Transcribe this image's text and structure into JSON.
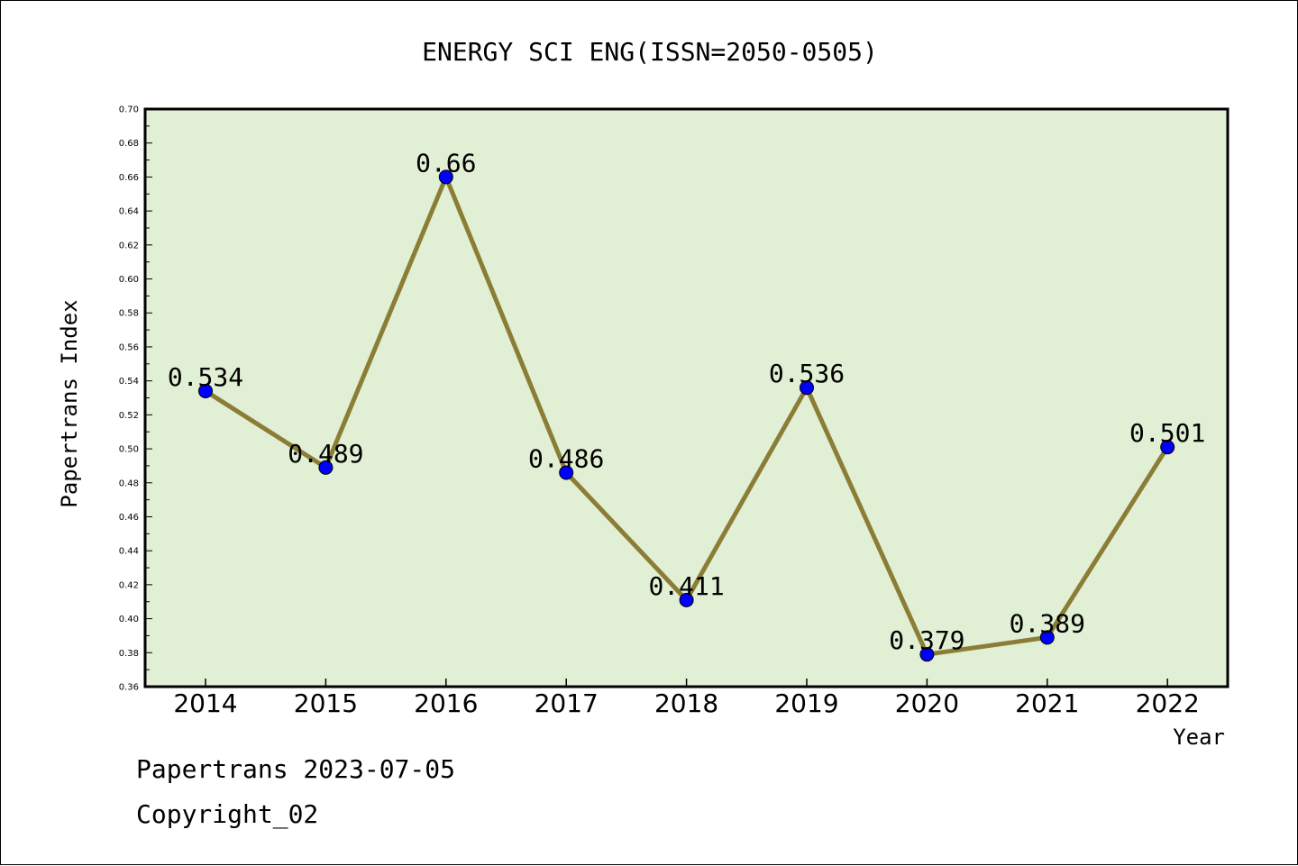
{
  "chart_data": {
    "type": "line",
    "title": "ENERGY SCI ENG(ISSN=2050-0505)",
    "xlabel": "Year",
    "ylabel": "Papertrans Index",
    "categories": [
      "2014",
      "2015",
      "2016",
      "2017",
      "2018",
      "2019",
      "2020",
      "2021",
      "2022"
    ],
    "values": [
      0.534,
      0.489,
      0.66,
      0.486,
      0.411,
      0.536,
      0.379,
      0.389,
      0.501
    ],
    "data_labels": [
      "0.534",
      "0.489",
      "0.66",
      "0.486",
      "0.411",
      "0.536",
      "0.379",
      "0.389",
      "0.501"
    ],
    "ylim": [
      0.36,
      0.7
    ],
    "yticks": [
      "0.36",
      "0.38",
      "0.40",
      "0.42",
      "0.44",
      "0.46",
      "0.48",
      "0.50",
      "0.52",
      "0.54",
      "0.56",
      "0.58",
      "0.60",
      "0.62",
      "0.64",
      "0.66",
      "0.68",
      "0.70"
    ],
    "grid": false,
    "legend": "none",
    "colors": {
      "plot_background": "#e1efd4",
      "line": "#8b7d35",
      "marker": "#0000ff"
    }
  },
  "footer": {
    "date_line": "Papertrans 2023-07-05",
    "copyright": "Copyright_02"
  }
}
